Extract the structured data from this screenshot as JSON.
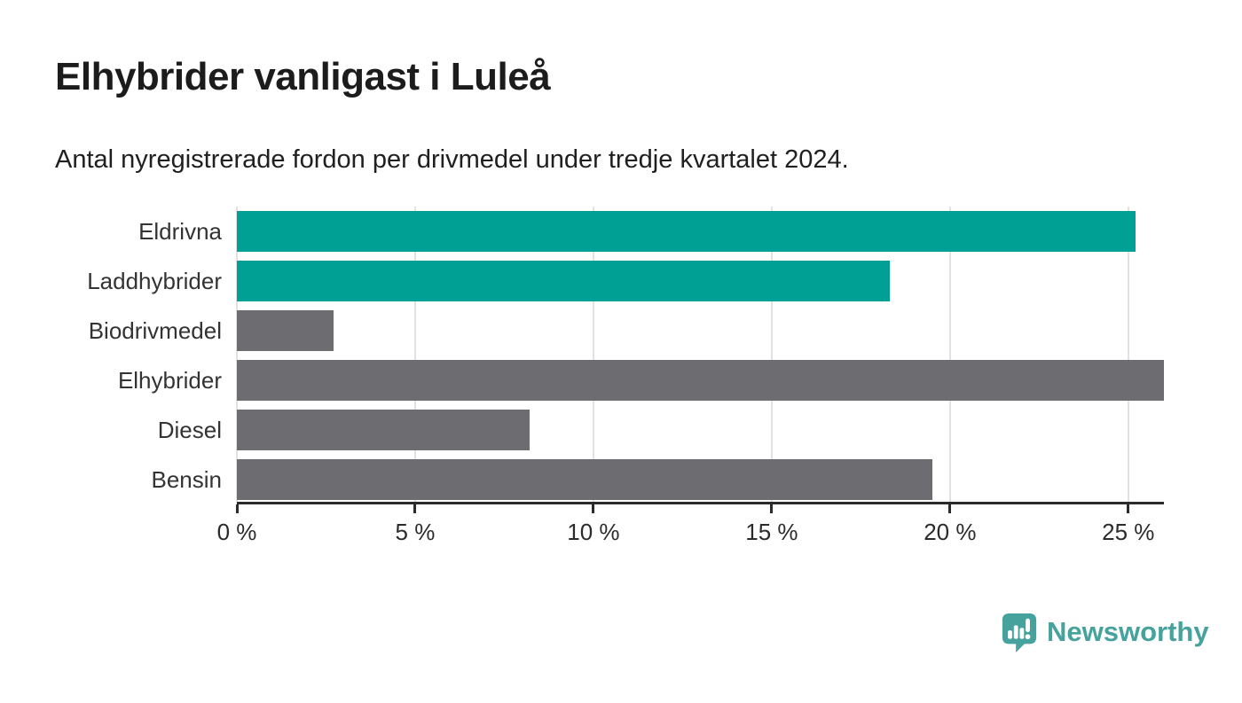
{
  "header": {
    "title": "Elhybrider vanligast i Luleå",
    "subtitle": "Antal nyregistrerade fordon per drivmedel under tredje kvartalet 2024."
  },
  "chart_data": {
    "type": "bar",
    "orientation": "horizontal",
    "title": "Elhybrider vanligast i Luleå",
    "subtitle": "Antal nyregistrerade fordon per drivmedel under tredje kvartalet 2024.",
    "categories": [
      "Eldrivna",
      "Laddhybrider",
      "Biodrivmedel",
      "Elhybrider",
      "Diesel",
      "Bensin"
    ],
    "values": [
      25.2,
      18.3,
      2.7,
      26.0,
      8.2,
      19.5
    ],
    "unit": "%",
    "bar_colors": [
      "#00a095",
      "#00a095",
      "#6c6c71",
      "#6c6c71",
      "#6c6c71",
      "#6c6c71"
    ],
    "xlabel": "",
    "ylabel": "",
    "xlim": [
      0,
      26
    ],
    "grid": true,
    "gridline_color": "#e2e2e2",
    "x_ticks": [
      {
        "value": 0,
        "label": "0 %"
      },
      {
        "value": 5,
        "label": "5 %"
      },
      {
        "value": 10,
        "label": "10 %"
      },
      {
        "value": 15,
        "label": "15 %"
      },
      {
        "value": 20,
        "label": "20 %"
      },
      {
        "value": 25,
        "label": "25 %"
      }
    ],
    "legend": "none"
  },
  "colors": {
    "highlight_teal": "#00a095",
    "neutral_gray": "#6c6c71",
    "axis": "#2b2b2b",
    "brand_teal": "#45a29c"
  },
  "footer": {
    "brand": "Newsworthy",
    "logo_icon": "speech-bubble-bar-chart-exclamation"
  }
}
